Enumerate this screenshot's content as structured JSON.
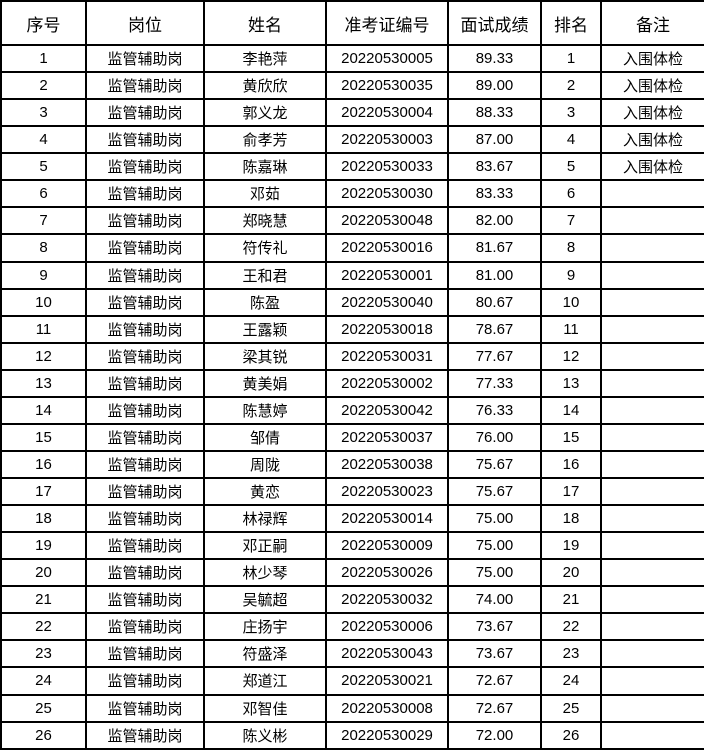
{
  "colors": {
    "border": "#000000",
    "text": "#000000",
    "background": "#ffffff"
  },
  "table": {
    "headers": {
      "seq": "序号",
      "position": "岗位",
      "name": "姓名",
      "ticket": "准考证编号",
      "score": "面试成绩",
      "rank": "排名",
      "remark": "备注"
    },
    "rows": [
      {
        "seq": "1",
        "position": "监管辅助岗",
        "name": "李艳萍",
        "ticket": "20220530005",
        "score": "89.33",
        "rank": "1",
        "remark": "入围体检"
      },
      {
        "seq": "2",
        "position": "监管辅助岗",
        "name": "黄欣欣",
        "ticket": "20220530035",
        "score": "89.00",
        "rank": "2",
        "remark": "入围体检"
      },
      {
        "seq": "3",
        "position": "监管辅助岗",
        "name": "郭义龙",
        "ticket": "20220530004",
        "score": "88.33",
        "rank": "3",
        "remark": "入围体检"
      },
      {
        "seq": "4",
        "position": "监管辅助岗",
        "name": "俞孝芳",
        "ticket": "20220530003",
        "score": "87.00",
        "rank": "4",
        "remark": "入围体检"
      },
      {
        "seq": "5",
        "position": "监管辅助岗",
        "name": "陈嘉琳",
        "ticket": "20220530033",
        "score": "83.67",
        "rank": "5",
        "remark": "入围体检"
      },
      {
        "seq": "6",
        "position": "监管辅助岗",
        "name": "邓茹",
        "ticket": "20220530030",
        "score": "83.33",
        "rank": "6",
        "remark": ""
      },
      {
        "seq": "7",
        "position": "监管辅助岗",
        "name": "郑晓慧",
        "ticket": "20220530048",
        "score": "82.00",
        "rank": "7",
        "remark": ""
      },
      {
        "seq": "8",
        "position": "监管辅助岗",
        "name": "符传礼",
        "ticket": "20220530016",
        "score": "81.67",
        "rank": "8",
        "remark": ""
      },
      {
        "seq": "9",
        "position": "监管辅助岗",
        "name": "王和君",
        "ticket": "20220530001",
        "score": "81.00",
        "rank": "9",
        "remark": ""
      },
      {
        "seq": "10",
        "position": "监管辅助岗",
        "name": "陈盈",
        "ticket": "20220530040",
        "score": "80.67",
        "rank": "10",
        "remark": ""
      },
      {
        "seq": "11",
        "position": "监管辅助岗",
        "name": "王露颖",
        "ticket": "20220530018",
        "score": "78.67",
        "rank": "11",
        "remark": ""
      },
      {
        "seq": "12",
        "position": "监管辅助岗",
        "name": "梁其锐",
        "ticket": "20220530031",
        "score": "77.67",
        "rank": "12",
        "remark": ""
      },
      {
        "seq": "13",
        "position": "监管辅助岗",
        "name": "黄美娟",
        "ticket": "20220530002",
        "score": "77.33",
        "rank": "13",
        "remark": ""
      },
      {
        "seq": "14",
        "position": "监管辅助岗",
        "name": "陈慧婷",
        "ticket": "20220530042",
        "score": "76.33",
        "rank": "14",
        "remark": ""
      },
      {
        "seq": "15",
        "position": "监管辅助岗",
        "name": "邹倩",
        "ticket": "20220530037",
        "score": "76.00",
        "rank": "15",
        "remark": ""
      },
      {
        "seq": "16",
        "position": "监管辅助岗",
        "name": "周陇",
        "ticket": "20220530038",
        "score": "75.67",
        "rank": "16",
        "remark": ""
      },
      {
        "seq": "17",
        "position": "监管辅助岗",
        "name": "黄恋",
        "ticket": "20220530023",
        "score": "75.67",
        "rank": "17",
        "remark": ""
      },
      {
        "seq": "18",
        "position": "监管辅助岗",
        "name": "林禄辉",
        "ticket": "20220530014",
        "score": "75.00",
        "rank": "18",
        "remark": ""
      },
      {
        "seq": "19",
        "position": "监管辅助岗",
        "name": "邓正嗣",
        "ticket": "20220530009",
        "score": "75.00",
        "rank": "19",
        "remark": ""
      },
      {
        "seq": "20",
        "position": "监管辅助岗",
        "name": "林少琴",
        "ticket": "20220530026",
        "score": "75.00",
        "rank": "20",
        "remark": ""
      },
      {
        "seq": "21",
        "position": "监管辅助岗",
        "name": "吴毓超",
        "ticket": "20220530032",
        "score": "74.00",
        "rank": "21",
        "remark": ""
      },
      {
        "seq": "22",
        "position": "监管辅助岗",
        "name": "庄扬宇",
        "ticket": "20220530006",
        "score": "73.67",
        "rank": "22",
        "remark": ""
      },
      {
        "seq": "23",
        "position": "监管辅助岗",
        "name": "符盛泽",
        "ticket": "20220530043",
        "score": "73.67",
        "rank": "23",
        "remark": ""
      },
      {
        "seq": "24",
        "position": "监管辅助岗",
        "name": "郑道江",
        "ticket": "20220530021",
        "score": "72.67",
        "rank": "24",
        "remark": ""
      },
      {
        "seq": "25",
        "position": "监管辅助岗",
        "name": "邓智佳",
        "ticket": "20220530008",
        "score": "72.67",
        "rank": "25",
        "remark": ""
      },
      {
        "seq": "26",
        "position": "监管辅助岗",
        "name": "陈义彬",
        "ticket": "20220530029",
        "score": "72.00",
        "rank": "26",
        "remark": ""
      }
    ]
  }
}
